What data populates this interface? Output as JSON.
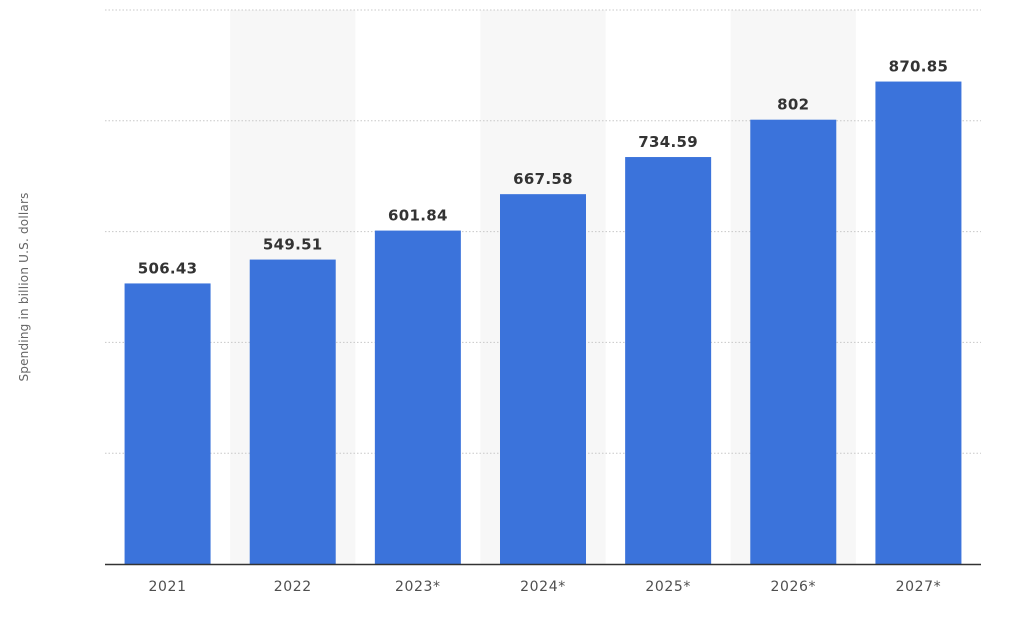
{
  "chart_data": {
    "type": "bar",
    "title": "",
    "xlabel": "",
    "ylabel": "Spending in billion U.S. dollars",
    "categories": [
      "2021",
      "2022",
      "2023*",
      "2024*",
      "2025*",
      "2026*",
      "2027*"
    ],
    "values": [
      506.43,
      549.51,
      601.84,
      667.58,
      734.59,
      802,
      870.85
    ],
    "value_labels": [
      "506.43",
      "549.51",
      "601.84",
      "667.58",
      "734.59",
      "802",
      "870.85"
    ],
    "ylim": [
      0,
      1000
    ],
    "grid": true,
    "bar_color": "#3b73db",
    "alt_band_color": "#f7f7f7",
    "legend": "none"
  }
}
